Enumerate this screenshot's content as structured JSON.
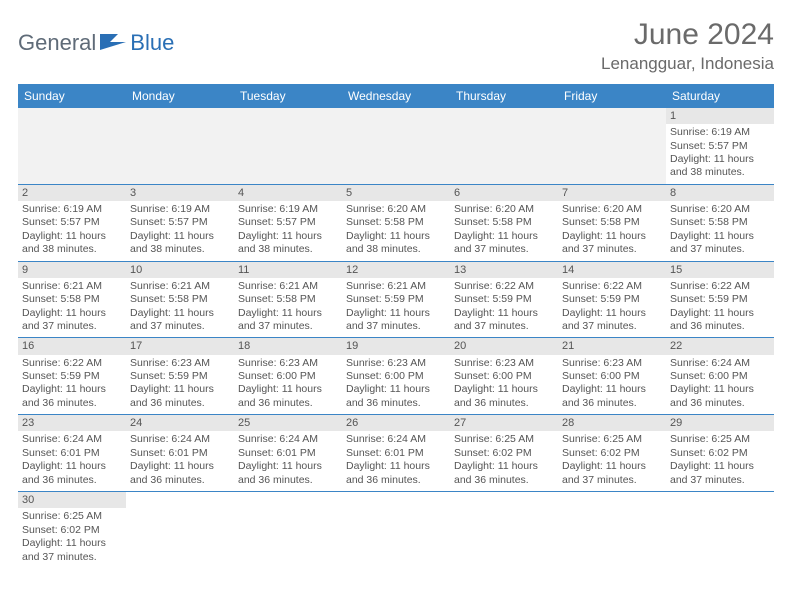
{
  "brand": {
    "part1": "General",
    "part2": "Blue",
    "iconColor": "#2a6fb5"
  },
  "title": {
    "month": "June 2024",
    "location": "Lenangguar, Indonesia"
  },
  "colors": {
    "headerBg": "#3b85c6",
    "headerText": "#ffffff",
    "dayNumBg": "#e7e7e7",
    "emptyBg": "#f2f2f2",
    "rowDivider": "#3b85c6",
    "bodyText": "#555555"
  },
  "weekdays": [
    "Sunday",
    "Monday",
    "Tuesday",
    "Wednesday",
    "Thursday",
    "Friday",
    "Saturday"
  ],
  "weeks": [
    [
      null,
      null,
      null,
      null,
      null,
      null,
      {
        "d": "1",
        "sunrise": "6:19 AM",
        "sunset": "5:57 PM",
        "daylight": "11 hours and 38 minutes."
      }
    ],
    [
      {
        "d": "2",
        "sunrise": "6:19 AM",
        "sunset": "5:57 PM",
        "daylight": "11 hours and 38 minutes."
      },
      {
        "d": "3",
        "sunrise": "6:19 AM",
        "sunset": "5:57 PM",
        "daylight": "11 hours and 38 minutes."
      },
      {
        "d": "4",
        "sunrise": "6:19 AM",
        "sunset": "5:57 PM",
        "daylight": "11 hours and 38 minutes."
      },
      {
        "d": "5",
        "sunrise": "6:20 AM",
        "sunset": "5:58 PM",
        "daylight": "11 hours and 38 minutes."
      },
      {
        "d": "6",
        "sunrise": "6:20 AM",
        "sunset": "5:58 PM",
        "daylight": "11 hours and 37 minutes."
      },
      {
        "d": "7",
        "sunrise": "6:20 AM",
        "sunset": "5:58 PM",
        "daylight": "11 hours and 37 minutes."
      },
      {
        "d": "8",
        "sunrise": "6:20 AM",
        "sunset": "5:58 PM",
        "daylight": "11 hours and 37 minutes."
      }
    ],
    [
      {
        "d": "9",
        "sunrise": "6:21 AM",
        "sunset": "5:58 PM",
        "daylight": "11 hours and 37 minutes."
      },
      {
        "d": "10",
        "sunrise": "6:21 AM",
        "sunset": "5:58 PM",
        "daylight": "11 hours and 37 minutes."
      },
      {
        "d": "11",
        "sunrise": "6:21 AM",
        "sunset": "5:58 PM",
        "daylight": "11 hours and 37 minutes."
      },
      {
        "d": "12",
        "sunrise": "6:21 AM",
        "sunset": "5:59 PM",
        "daylight": "11 hours and 37 minutes."
      },
      {
        "d": "13",
        "sunrise": "6:22 AM",
        "sunset": "5:59 PM",
        "daylight": "11 hours and 37 minutes."
      },
      {
        "d": "14",
        "sunrise": "6:22 AM",
        "sunset": "5:59 PM",
        "daylight": "11 hours and 37 minutes."
      },
      {
        "d": "15",
        "sunrise": "6:22 AM",
        "sunset": "5:59 PM",
        "daylight": "11 hours and 36 minutes."
      }
    ],
    [
      {
        "d": "16",
        "sunrise": "6:22 AM",
        "sunset": "5:59 PM",
        "daylight": "11 hours and 36 minutes."
      },
      {
        "d": "17",
        "sunrise": "6:23 AM",
        "sunset": "5:59 PM",
        "daylight": "11 hours and 36 minutes."
      },
      {
        "d": "18",
        "sunrise": "6:23 AM",
        "sunset": "6:00 PM",
        "daylight": "11 hours and 36 minutes."
      },
      {
        "d": "19",
        "sunrise": "6:23 AM",
        "sunset": "6:00 PM",
        "daylight": "11 hours and 36 minutes."
      },
      {
        "d": "20",
        "sunrise": "6:23 AM",
        "sunset": "6:00 PM",
        "daylight": "11 hours and 36 minutes."
      },
      {
        "d": "21",
        "sunrise": "6:23 AM",
        "sunset": "6:00 PM",
        "daylight": "11 hours and 36 minutes."
      },
      {
        "d": "22",
        "sunrise": "6:24 AM",
        "sunset": "6:00 PM",
        "daylight": "11 hours and 36 minutes."
      }
    ],
    [
      {
        "d": "23",
        "sunrise": "6:24 AM",
        "sunset": "6:01 PM",
        "daylight": "11 hours and 36 minutes."
      },
      {
        "d": "24",
        "sunrise": "6:24 AM",
        "sunset": "6:01 PM",
        "daylight": "11 hours and 36 minutes."
      },
      {
        "d": "25",
        "sunrise": "6:24 AM",
        "sunset": "6:01 PM",
        "daylight": "11 hours and 36 minutes."
      },
      {
        "d": "26",
        "sunrise": "6:24 AM",
        "sunset": "6:01 PM",
        "daylight": "11 hours and 36 minutes."
      },
      {
        "d": "27",
        "sunrise": "6:25 AM",
        "sunset": "6:02 PM",
        "daylight": "11 hours and 36 minutes."
      },
      {
        "d": "28",
        "sunrise": "6:25 AM",
        "sunset": "6:02 PM",
        "daylight": "11 hours and 37 minutes."
      },
      {
        "d": "29",
        "sunrise": "6:25 AM",
        "sunset": "6:02 PM",
        "daylight": "11 hours and 37 minutes."
      }
    ],
    [
      {
        "d": "30",
        "sunrise": "6:25 AM",
        "sunset": "6:02 PM",
        "daylight": "11 hours and 37 minutes."
      },
      null,
      null,
      null,
      null,
      null,
      null
    ]
  ],
  "labels": {
    "sunrise": "Sunrise:",
    "sunset": "Sunset:",
    "daylight": "Daylight:"
  }
}
